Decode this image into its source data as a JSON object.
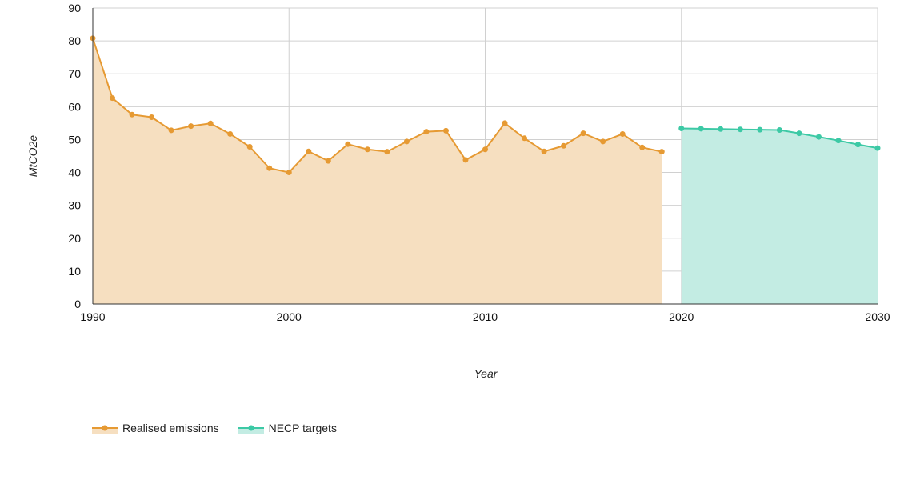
{
  "chart_data": {
    "type": "area",
    "title": "",
    "xlabel": "Year",
    "ylabel": "MtCO2e",
    "xlim": [
      1990,
      2030
    ],
    "ylim": [
      0,
      90
    ],
    "x_ticks": [
      1990,
      2000,
      2010,
      2020,
      2030
    ],
    "y_ticks": [
      0,
      10,
      20,
      30,
      40,
      50,
      60,
      70,
      80,
      90
    ],
    "grid": true,
    "legend_position": "bottom-left",
    "series": [
      {
        "name": "Realised emissions",
        "color": "#e69a33",
        "fill": "#f6dfc0",
        "x": [
          1990,
          1991,
          1992,
          1993,
          1994,
          1995,
          1996,
          1997,
          1998,
          1999,
          2000,
          2001,
          2002,
          2003,
          2004,
          2005,
          2006,
          2007,
          2008,
          2009,
          2010,
          2011,
          2012,
          2013,
          2014,
          2015,
          2016,
          2017,
          2018,
          2019
        ],
        "y": [
          80.8,
          62.6,
          57.6,
          56.8,
          52.8,
          54.1,
          54.9,
          51.7,
          47.8,
          41.3,
          40.0,
          46.4,
          43.5,
          48.6,
          47.0,
          46.3,
          49.4,
          52.4,
          52.7,
          43.8,
          47.0,
          55.0,
          50.4,
          46.4,
          48.1,
          51.9,
          49.4,
          51.7,
          47.6,
          46.3
        ]
      },
      {
        "name": "NECP targets",
        "color": "#3cc9a5",
        "fill": "#c3ece3",
        "x": [
          2020,
          2021,
          2022,
          2023,
          2024,
          2025,
          2026,
          2027,
          2028,
          2029,
          2030
        ],
        "y": [
          53.4,
          53.3,
          53.2,
          53.1,
          53.0,
          52.9,
          51.9,
          50.8,
          49.7,
          48.5,
          47.4
        ]
      }
    ]
  }
}
